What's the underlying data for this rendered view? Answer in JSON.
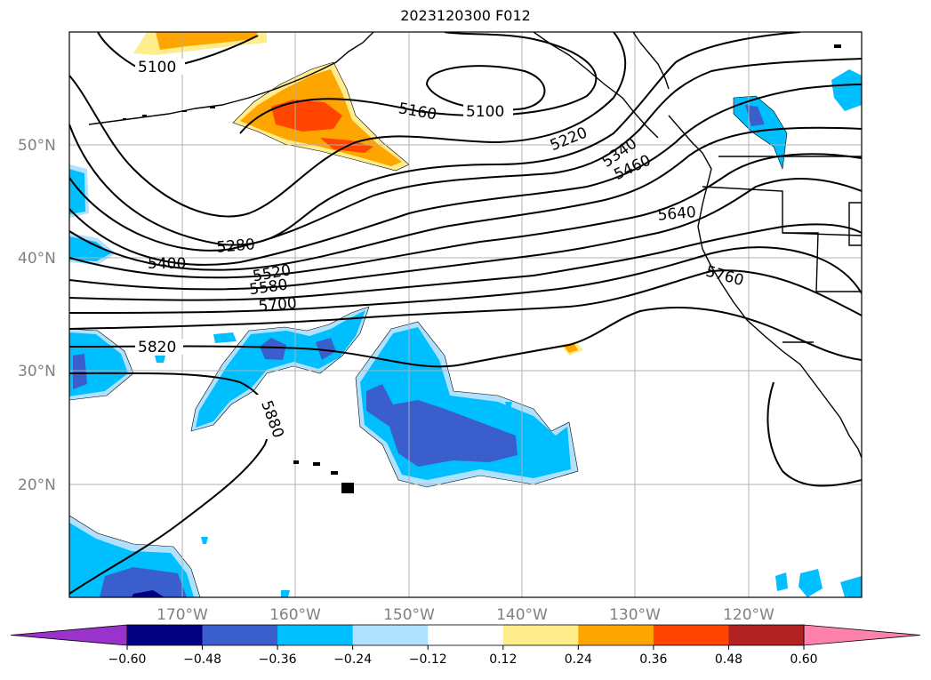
{
  "title": "2023120300 F012",
  "lat_labels": [
    "50°N",
    "40°N",
    "30°N",
    "20°N"
  ],
  "lon_labels": [
    "170°W",
    "160°W",
    "150°W",
    "140°W",
    "130°W",
    "120°W"
  ],
  "contour_labels": [
    "5100",
    "5100",
    "5160",
    "5220",
    "5340",
    "5460",
    "5280",
    "5400",
    "5520",
    "5580",
    "5640",
    "5700",
    "5760",
    "5820",
    "5880"
  ],
  "colorbar": {
    "ticks": [
      "−0.60",
      "−0.48",
      "−0.36",
      "−0.24",
      "−0.12",
      "0.12",
      "0.24",
      "0.36",
      "0.48",
      "0.60"
    ],
    "colors": [
      "#9933cc",
      "#000080",
      "#3a5fcd",
      "#00bfff",
      "#b0e2ff",
      "#ffffff",
      "#ffec8b",
      "#ffa500",
      "#ff4500",
      "#b22222",
      "#ff82ab"
    ]
  },
  "colors": {
    "neg_light": "#b0e2ff",
    "neg_mid": "#00bfff",
    "neg_strong": "#3a5fcd",
    "neg_max": "#000080",
    "pos_light": "#ffec8b",
    "pos_mid": "#ffa500",
    "pos_strong": "#ff4500",
    "grid": "#b0b0b0",
    "contour": "#000000"
  }
}
